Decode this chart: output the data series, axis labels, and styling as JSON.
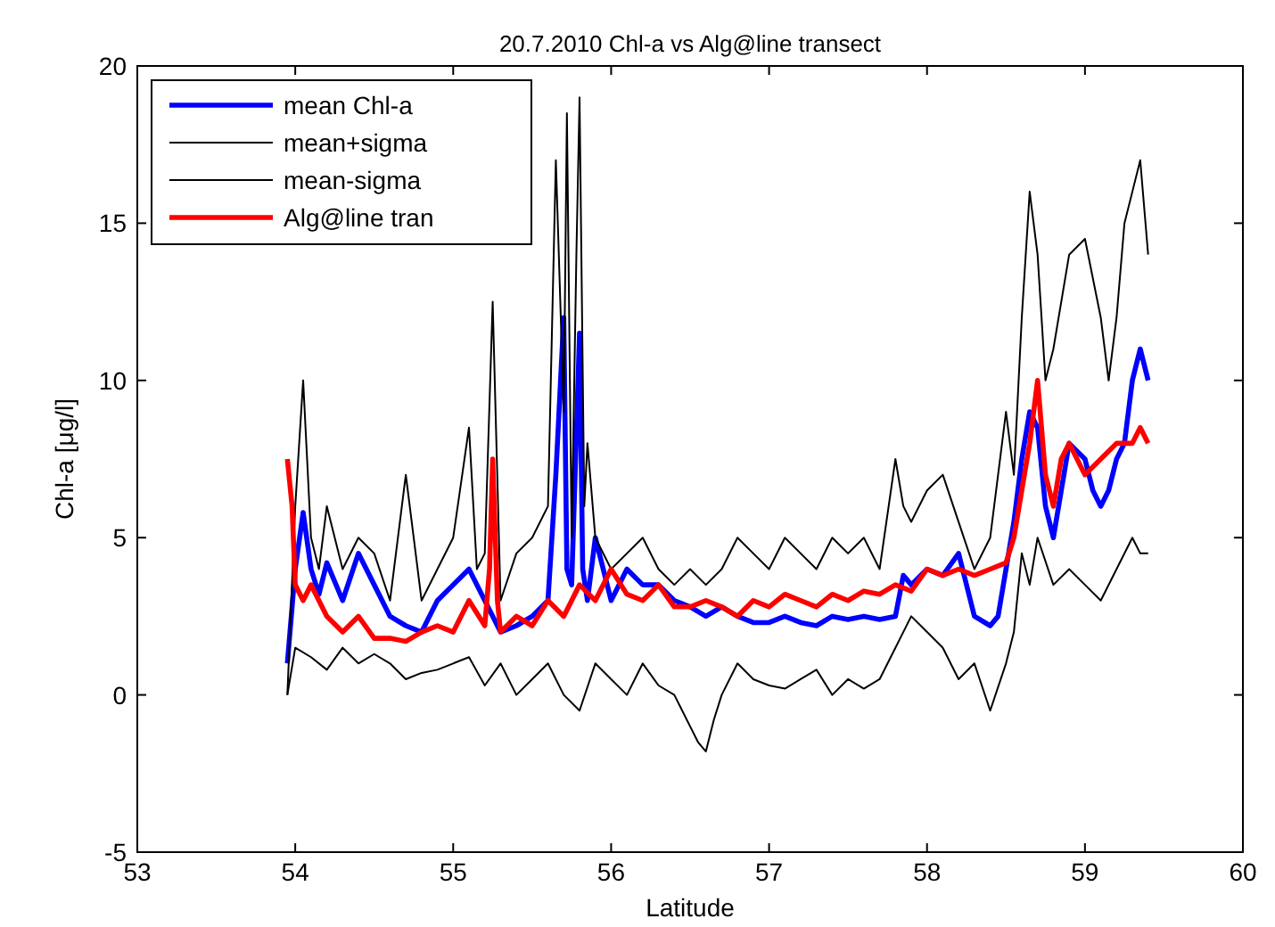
{
  "chart_data": {
    "type": "line",
    "title": "20.7.2010 Chl-a vs Alg@line transect",
    "xlabel": "Latitude",
    "ylabel": "Chl-a [μg/l]",
    "xlim": [
      53,
      60
    ],
    "xticks": [
      53,
      54,
      55,
      56,
      57,
      58,
      59,
      60
    ],
    "ylim": [
      -5,
      20
    ],
    "yticks": [
      -5,
      0,
      5,
      10,
      15,
      20
    ],
    "grid": false,
    "legend": "top left",
    "line_style": "solid",
    "marker": "none",
    "series": [
      {
        "name": "mean Chl-a",
        "color": "#0000ff",
        "x": [
          53.95,
          54.0,
          54.05,
          54.1,
          54.15,
          54.2,
          54.3,
          54.4,
          54.5,
          54.6,
          54.7,
          54.8,
          54.9,
          55.0,
          55.1,
          55.2,
          55.3,
          55.4,
          55.5,
          55.6,
          55.65,
          55.7,
          55.72,
          55.75,
          55.8,
          55.82,
          55.85,
          55.9,
          56.0,
          56.1,
          56.2,
          56.3,
          56.4,
          56.5,
          56.6,
          56.7,
          56.8,
          56.9,
          57.0,
          57.1,
          57.2,
          57.3,
          57.4,
          57.5,
          57.6,
          57.7,
          57.8,
          57.85,
          57.9,
          58.0,
          58.1,
          58.2,
          58.3,
          58.4,
          58.45,
          58.5,
          58.55,
          58.6,
          58.65,
          58.7,
          58.75,
          58.8,
          58.85,
          58.9,
          59.0,
          59.05,
          59.1,
          59.15,
          59.2,
          59.25,
          59.3,
          59.35,
          59.4
        ],
        "values": [
          1.0,
          4.0,
          5.8,
          4.0,
          3.2,
          4.2,
          3.0,
          4.5,
          3.5,
          2.5,
          2.2,
          2.0,
          3.0,
          3.5,
          4.0,
          3.0,
          2.0,
          2.2,
          2.5,
          3.0,
          7.0,
          12.0,
          4.0,
          3.5,
          11.5,
          4.0,
          3.0,
          5.0,
          3.0,
          4.0,
          3.5,
          3.5,
          3.0,
          2.8,
          2.5,
          2.8,
          2.5,
          2.3,
          2.3,
          2.5,
          2.3,
          2.2,
          2.5,
          2.4,
          2.5,
          2.4,
          2.5,
          3.8,
          3.5,
          4.0,
          3.8,
          4.5,
          2.5,
          2.2,
          2.5,
          4.0,
          5.5,
          7.5,
          9.0,
          8.5,
          6.0,
          5.0,
          6.5,
          8.0,
          7.5,
          6.5,
          6.0,
          6.5,
          7.5,
          8.0,
          10.0,
          11.0,
          10.0
        ]
      },
      {
        "name": "mean+sigma",
        "color": "#000000",
        "x": [
          53.95,
          54.0,
          54.05,
          54.1,
          54.15,
          54.2,
          54.3,
          54.4,
          54.5,
          54.6,
          54.7,
          54.8,
          54.9,
          55.0,
          55.1,
          55.15,
          55.2,
          55.25,
          55.3,
          55.4,
          55.5,
          55.6,
          55.65,
          55.7,
          55.72,
          55.75,
          55.78,
          55.8,
          55.83,
          55.85,
          55.9,
          56.0,
          56.1,
          56.2,
          56.3,
          56.4,
          56.5,
          56.6,
          56.7,
          56.8,
          56.9,
          57.0,
          57.1,
          57.2,
          57.3,
          57.4,
          57.5,
          57.6,
          57.7,
          57.8,
          57.85,
          57.9,
          58.0,
          58.1,
          58.2,
          58.3,
          58.4,
          58.5,
          58.55,
          58.6,
          58.65,
          58.7,
          58.75,
          58.8,
          58.9,
          59.0,
          59.1,
          59.15,
          59.2,
          59.25,
          59.3,
          59.35,
          59.4
        ],
        "values": [
          0.0,
          6.0,
          10.0,
          5.0,
          4.0,
          6.0,
          4.0,
          5.0,
          4.5,
          3.0,
          7.0,
          3.0,
          4.0,
          5.0,
          8.5,
          4.0,
          4.5,
          12.5,
          3.0,
          4.5,
          5.0,
          6.0,
          17.0,
          9.0,
          18.5,
          5.0,
          14.0,
          19.0,
          6.0,
          8.0,
          5.0,
          4.0,
          4.5,
          5.0,
          4.0,
          3.5,
          4.0,
          3.5,
          4.0,
          5.0,
          4.5,
          4.0,
          5.0,
          4.5,
          4.0,
          5.0,
          4.5,
          5.0,
          4.0,
          7.5,
          6.0,
          5.5,
          6.5,
          7.0,
          5.5,
          4.0,
          5.0,
          9.0,
          7.0,
          12.0,
          16.0,
          14.0,
          10.0,
          11.0,
          14.0,
          14.5,
          12.0,
          10.0,
          12.0,
          15.0,
          16.0,
          17.0,
          14.0
        ]
      },
      {
        "name": "mean-sigma",
        "color": "#000000",
        "x": [
          53.95,
          54.0,
          54.1,
          54.2,
          54.3,
          54.4,
          54.5,
          54.6,
          54.7,
          54.8,
          54.9,
          55.0,
          55.1,
          55.2,
          55.3,
          55.4,
          55.5,
          55.6,
          55.7,
          55.8,
          55.9,
          56.0,
          56.1,
          56.2,
          56.3,
          56.4,
          56.5,
          56.55,
          56.6,
          56.65,
          56.7,
          56.8,
          56.9,
          57.0,
          57.1,
          57.2,
          57.3,
          57.4,
          57.5,
          57.6,
          57.7,
          57.8,
          57.9,
          58.0,
          58.1,
          58.2,
          58.3,
          58.4,
          58.5,
          58.55,
          58.6,
          58.65,
          58.7,
          58.8,
          58.9,
          59.0,
          59.1,
          59.2,
          59.3,
          59.35,
          59.4
        ],
        "values": [
          0.0,
          1.5,
          1.2,
          0.8,
          1.5,
          1.0,
          1.3,
          1.0,
          0.5,
          0.7,
          0.8,
          1.0,
          1.2,
          0.3,
          1.0,
          0.0,
          0.5,
          1.0,
          0.0,
          -0.5,
          1.0,
          0.5,
          0.0,
          1.0,
          0.3,
          0.0,
          -1.0,
          -1.5,
          -1.8,
          -0.8,
          0.0,
          1.0,
          0.5,
          0.3,
          0.2,
          0.5,
          0.8,
          0.0,
          0.5,
          0.2,
          0.5,
          1.5,
          2.5,
          2.0,
          1.5,
          0.5,
          1.0,
          -0.5,
          1.0,
          2.0,
          4.5,
          3.5,
          5.0,
          3.5,
          4.0,
          3.5,
          3.0,
          4.0,
          5.0,
          4.5,
          4.5
        ]
      },
      {
        "name": "Alg@line tran",
        "color": "#ff0000",
        "x": [
          53.95,
          53.98,
          54.0,
          54.05,
          54.1,
          54.2,
          54.3,
          54.4,
          54.5,
          54.6,
          54.7,
          54.8,
          54.9,
          55.0,
          55.1,
          55.2,
          55.23,
          55.25,
          55.28,
          55.3,
          55.4,
          55.5,
          55.6,
          55.7,
          55.8,
          55.9,
          56.0,
          56.1,
          56.2,
          56.3,
          56.4,
          56.5,
          56.6,
          56.7,
          56.8,
          56.9,
          57.0,
          57.1,
          57.2,
          57.3,
          57.4,
          57.5,
          57.6,
          57.7,
          57.8,
          57.9,
          58.0,
          58.1,
          58.2,
          58.3,
          58.4,
          58.5,
          58.55,
          58.6,
          58.65,
          58.7,
          58.75,
          58.8,
          58.85,
          58.9,
          59.0,
          59.1,
          59.2,
          59.3,
          59.35,
          59.4
        ],
        "values": [
          7.5,
          6.0,
          3.5,
          3.0,
          3.5,
          2.5,
          2.0,
          2.5,
          1.8,
          1.8,
          1.7,
          2.0,
          2.2,
          2.0,
          3.0,
          2.2,
          4.0,
          7.5,
          3.0,
          2.0,
          2.5,
          2.2,
          3.0,
          2.5,
          3.5,
          3.0,
          4.0,
          3.2,
          3.0,
          3.5,
          2.8,
          2.8,
          3.0,
          2.8,
          2.5,
          3.0,
          2.8,
          3.2,
          3.0,
          2.8,
          3.2,
          3.0,
          3.3,
          3.2,
          3.5,
          3.3,
          4.0,
          3.8,
          4.0,
          3.8,
          4.0,
          4.2,
          5.0,
          6.5,
          8.0,
          10.0,
          7.0,
          6.0,
          7.5,
          8.0,
          7.0,
          7.5,
          8.0,
          8.0,
          8.5,
          8.0
        ]
      }
    ]
  }
}
